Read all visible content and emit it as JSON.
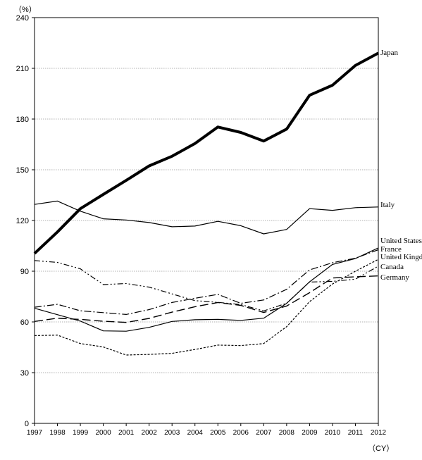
{
  "chart_data": {
    "type": "line",
    "title": "",
    "y_unit": "（%）",
    "x_unit": "（CY）",
    "xlabel": "",
    "ylabel": "",
    "ylim": [
      0,
      240
    ],
    "yticks": [
      0,
      30,
      60,
      90,
      120,
      150,
      180,
      210,
      240
    ],
    "x": [
      "1997",
      "1998",
      "1999",
      "2000",
      "2001",
      "2002",
      "2003",
      "2004",
      "2005",
      "2006",
      "2007",
      "2008",
      "2009",
      "2010",
      "2011",
      "2012"
    ],
    "grid": "horizontal dotted",
    "legend": "labels at right end of lines",
    "series": [
      {
        "name": "Japan",
        "style": "thick-solid",
        "values": [
          100.5,
          113.2,
          127.0,
          135.4,
          143.7,
          152.3,
          158.0,
          165.5,
          175.3,
          172.1,
          167.0,
          174.1,
          194.1,
          200.0,
          211.7,
          219.0
        ]
      },
      {
        "name": "Italy",
        "style": "solid",
        "values": [
          129.5,
          131.5,
          125.5,
          121.0,
          120.3,
          118.8,
          116.3,
          116.7,
          119.5,
          116.9,
          112.1,
          114.7,
          127.0,
          126.0,
          127.6,
          128.0
        ]
      },
      {
        "name": "United States",
        "style": "dash-dot",
        "values": [
          68.7,
          70.4,
          66.6,
          65.5,
          64.4,
          67.3,
          71.5,
          74.0,
          76.3,
          71.0,
          73.0,
          79.3,
          90.8,
          95.0,
          97.7,
          102.7
        ]
      },
      {
        "name": "France",
        "style": "solid-thin",
        "values": [
          68.1,
          64.3,
          60.5,
          54.7,
          54.5,
          56.8,
          60.3,
          61.3,
          61.5,
          60.9,
          62.2,
          71.0,
          83.7,
          94.0,
          97.5,
          103.8
        ]
      },
      {
        "name": "United Kingdom",
        "style": "short-dash",
        "values": [
          51.9,
          52.2,
          47.2,
          45.2,
          40.4,
          40.8,
          41.4,
          43.7,
          46.3,
          46.0,
          47.2,
          57.2,
          72.0,
          82.4,
          90.0,
          97.0
        ]
      },
      {
        "name": "Canada",
        "style": "dash-dot-dot",
        "values": [
          96.3,
          95.2,
          91.4,
          82.1,
          82.7,
          80.6,
          76.6,
          72.6,
          71.6,
          70.3,
          66.5,
          71.1,
          83.6,
          84.0,
          85.3,
          93.0
        ]
      },
      {
        "name": "Germany",
        "style": "long-dash",
        "values": [
          60.3,
          62.2,
          61.5,
          60.4,
          59.7,
          62.1,
          65.8,
          69.0,
          71.5,
          69.8,
          65.6,
          69.4,
          77.3,
          86.0,
          86.7,
          87.2
        ]
      }
    ]
  }
}
